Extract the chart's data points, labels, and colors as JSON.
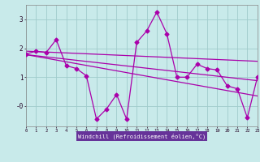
{
  "xlabel": "Windchill (Refroidissement éolien,°C)",
  "bg_color": "#c8eaea",
  "grid_color": "#a0cccc",
  "line_color": "#aa00aa",
  "xlabel_bg": "#6633aa",
  "xlabel_fg": "#ffffff",
  "xlim": [
    0,
    23
  ],
  "ylim": [
    -0.7,
    3.5
  ],
  "yticks": [
    0,
    1,
    2,
    3
  ],
  "ytick_labels": [
    "-0",
    "1",
    "2",
    "3"
  ],
  "xticks": [
    0,
    1,
    2,
    3,
    4,
    5,
    6,
    7,
    8,
    9,
    10,
    11,
    12,
    13,
    14,
    15,
    16,
    17,
    18,
    19,
    20,
    21,
    22,
    23
  ],
  "main_series_x": [
    0,
    1,
    2,
    3,
    4,
    5,
    6,
    7,
    8,
    9,
    10,
    11,
    12,
    13,
    14,
    15,
    16,
    17,
    18,
    19,
    20,
    21,
    22,
    23
  ],
  "main_series_y": [
    1.8,
    1.9,
    1.85,
    2.3,
    1.4,
    1.3,
    1.05,
    -0.45,
    -0.1,
    0.4,
    -0.45,
    2.2,
    2.6,
    3.25,
    2.5,
    1.0,
    1.0,
    1.45,
    1.3,
    1.25,
    0.7,
    0.6,
    -0.4,
    1.0
  ],
  "trend_line1_x": [
    0,
    23
  ],
  "trend_line1_y": [
    1.9,
    1.55
  ],
  "trend_line2_x": [
    0,
    23
  ],
  "trend_line2_y": [
    1.78,
    0.35
  ],
  "trend_line3_x": [
    0,
    23
  ],
  "trend_line3_y": [
    1.78,
    0.88
  ]
}
